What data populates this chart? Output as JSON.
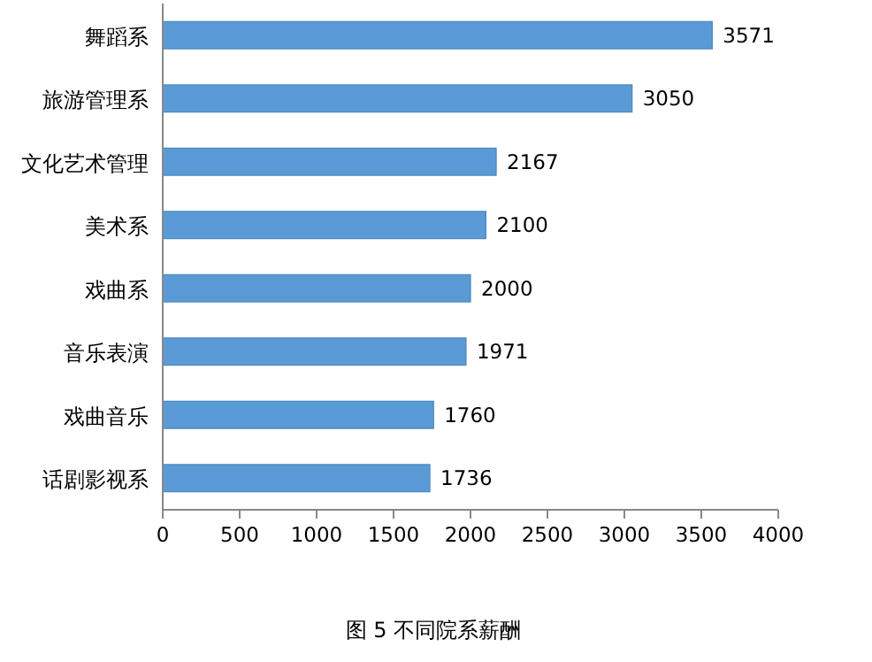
{
  "chart_data": {
    "type": "bar",
    "orientation": "horizontal",
    "categories": [
      "舞蹈系",
      "旅游管理系",
      "文化艺术管理",
      "美术系",
      "戏曲系",
      "音乐表演",
      "戏曲音乐",
      "话剧影视系"
    ],
    "values": [
      3571,
      3050,
      2167,
      2100,
      2000,
      1971,
      1760,
      1736
    ],
    "color": "#5b9bd5",
    "xlim": [
      0,
      4000
    ],
    "xticks": [
      0,
      500,
      1000,
      1500,
      2000,
      2500,
      3000,
      3500,
      4000
    ],
    "data_labels": true,
    "annotations": [
      "图 5 不同院系薪酬"
    ]
  }
}
